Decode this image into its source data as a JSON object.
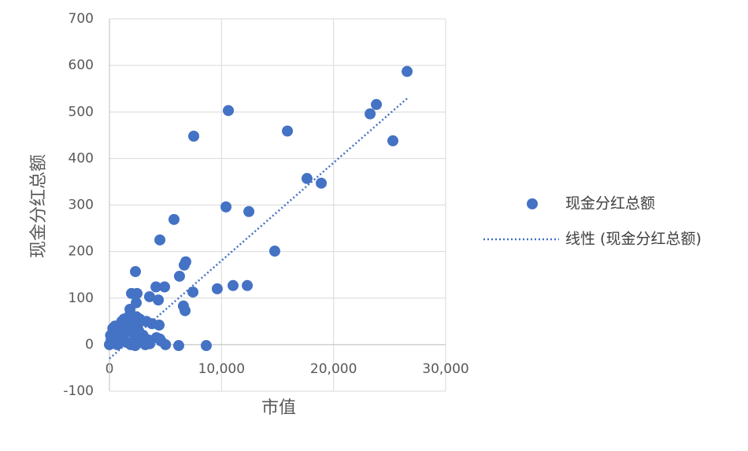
{
  "chart_data": {
    "type": "scatter",
    "x_label": "市值",
    "y_label": "现金分红总额",
    "xlim": [
      0,
      30000
    ],
    "ylim": [
      -100,
      700
    ],
    "xticks": [
      0,
      {
        "value": 10000,
        "label": "10,000"
      },
      {
        "value": 20000,
        "label": "20,000"
      },
      {
        "value": 30000,
        "label": "30,000"
      }
    ],
    "yticks": [
      -100,
      0,
      100,
      200,
      300,
      400,
      500,
      600,
      700
    ],
    "grid": true,
    "legend": "right",
    "series": [
      {
        "name": "现金分红总额",
        "color": "#4472c4",
        "x": [
          26560,
          23820,
          23260,
          25290,
          10610,
          7520,
          15880,
          17630,
          18900,
          10400,
          12440,
          5760,
          14750,
          4500,
          6810,
          6670,
          6250,
          2320,
          9620,
          11030,
          12300,
          7450,
          4920,
          4150,
          3580,
          4360,
          1970,
          2460,
          2390,
          6600,
          6750,
          4430,
          8640,
          6180,
          1830,
          0,
          200,
          400,
          600,
          800,
          1000,
          1200,
          1400,
          1600,
          1800,
          2000,
          2200,
          2400,
          2600,
          2800,
          3000,
          3200,
          3500,
          3800,
          4200,
          4600,
          5000,
          300,
          700,
          900,
          1100,
          1500,
          1700,
          2100,
          2500,
          1300,
          500,
          2700,
          3300,
          100,
          150,
          3600,
          4500,
          2300,
          1900
        ],
        "values": [
          587,
          516,
          496,
          438,
          503,
          448,
          459,
          357,
          347,
          296,
          286,
          269,
          201,
          225,
          178,
          171,
          147,
          157,
          120,
          127,
          127,
          113,
          124,
          124,
          103,
          96,
          110,
          110,
          90,
          83,
          73,
          42,
          -2,
          -2,
          76,
          0,
          5,
          10,
          20,
          30,
          15,
          40,
          25,
          45,
          35,
          50,
          10,
          60,
          30,
          5,
          20,
          0,
          10,
          45,
          15,
          8,
          0,
          35,
          0,
          5,
          50,
          5,
          60,
          25,
          40,
          55,
          40,
          55,
          50,
          20,
          10,
          2,
          12,
          -2,
          0
        ]
      }
    ],
    "trendline": {
      "name": "线性 (现金分红总额)",
      "color": "#4472c4",
      "x": [
        0,
        26560
      ],
      "values": [
        -30,
        529
      ]
    }
  }
}
